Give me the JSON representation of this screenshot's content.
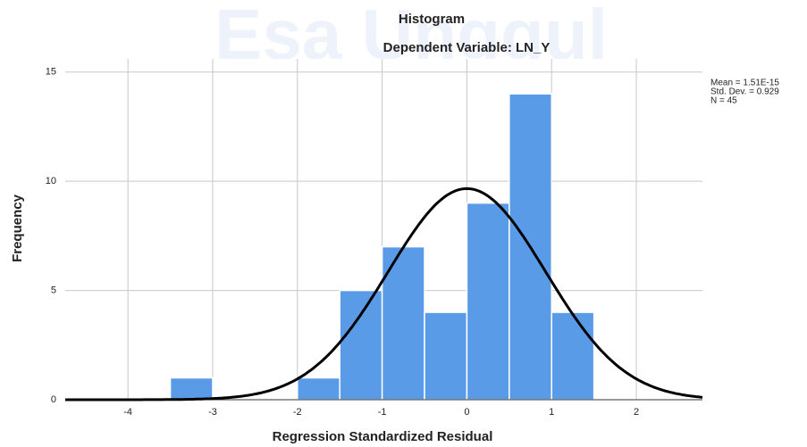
{
  "chart_data": {
    "type": "histogram",
    "title": "Histogram",
    "subtitle": "Dependent Variable: LN_Y",
    "watermark": "Esa Unggul",
    "xlabel": "Regression Standardized Residual",
    "ylabel": "Frequency",
    "bins": [
      -3.5,
      -3,
      -2.5,
      -2,
      -1.5,
      -1,
      -0.5,
      0,
      0.5,
      1,
      1.5
    ],
    "values": [
      1,
      0,
      0,
      1,
      5,
      7,
      4,
      9,
      14,
      4
    ],
    "color": "#5a9be8",
    "xlim": [
      -4.74,
      2.78
    ],
    "ylim": [
      0,
      15.6
    ],
    "xticks": [
      -4,
      -3,
      -2,
      -1,
      0,
      1,
      2
    ],
    "yticks": [
      0,
      5,
      10,
      15
    ],
    "grid": true,
    "normal_curve": {
      "mean": 1.51e-15,
      "std": 0.929,
      "n": 45,
      "color": "#000000"
    },
    "annotations": [
      "Mean = 1.51E-15",
      "Std. Dev. = 0.929",
      "N = 45"
    ]
  }
}
